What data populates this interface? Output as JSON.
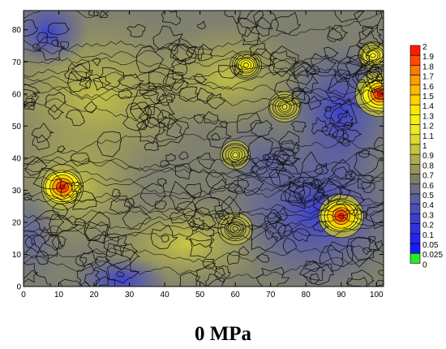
{
  "chart_data": {
    "type": "heatmap",
    "title": "0 MPa",
    "xlabel": "",
    "ylabel": "",
    "xlim": [
      0,
      102
    ],
    "ylim": [
      0,
      86
    ],
    "x_ticks": [
      0,
      10,
      20,
      30,
      40,
      50,
      60,
      70,
      80,
      90,
      100
    ],
    "y_ticks": [
      0,
      10,
      20,
      30,
      40,
      50,
      60,
      70,
      80
    ],
    "colorbar": {
      "levels": [
        0,
        0.025,
        0.05,
        0.1,
        0.2,
        0.3,
        0.4,
        0.5,
        0.6,
        0.7,
        0.8,
        0.9,
        1,
        1.1,
        1.2,
        1.3,
        1.4,
        1.5,
        1.6,
        1.7,
        1.8,
        1.9,
        2
      ],
      "labels": [
        "0",
        "0.025",
        "0.05",
        "0.1",
        "0.2",
        "0.3",
        "0.4",
        "0.5",
        "0.6",
        "0.7",
        "0.8",
        "0.9",
        "1",
        "1.1",
        "1.2",
        "1.3",
        "1.4",
        "1.5",
        "1.6",
        "1.7",
        "1.8",
        "1.9",
        "2"
      ],
      "colors": [
        "#22ee22",
        "#1a1aff",
        "#2525ee",
        "#3232e0",
        "#3b3fcf",
        "#4a4fb8",
        "#5a5f9e",
        "#6a6d84",
        "#7d7d6a",
        "#96955a",
        "#adab4d",
        "#c6c43e",
        "#dcd930",
        "#ecea22",
        "#f6ee14",
        "#ffe600",
        "#ffd200",
        "#ffb800",
        "#ff9c00",
        "#ff7a00",
        "#ff4a00",
        "#ff1a00"
      ]
    },
    "hotspots": [
      {
        "x": 11,
        "y": 31,
        "peak": 2.0
      },
      {
        "x": 90,
        "y": 22,
        "peak": 2.0
      },
      {
        "x": 101,
        "y": 60,
        "peak": 2.0
      },
      {
        "x": 99,
        "y": 72,
        "peak": 1.2
      },
      {
        "x": 63,
        "y": 69,
        "peak": 1.3
      },
      {
        "x": 74,
        "y": 56,
        "peak": 1.0
      },
      {
        "x": 60,
        "y": 41,
        "peak": 1.0
      },
      {
        "x": 60,
        "y": 18,
        "peak": 0.85
      }
    ],
    "grid": false
  }
}
